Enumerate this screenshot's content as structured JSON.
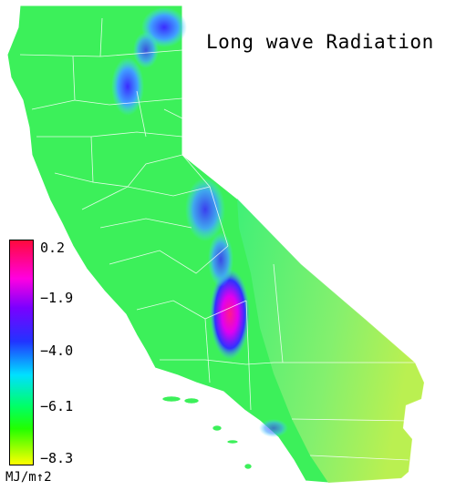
{
  "title": "Long wave Radiation",
  "legend": {
    "ticks": [
      "0.2",
      "−1.9",
      "−4.0",
      "−6.1",
      "−8.3"
    ],
    "unit": "MJ/m↑2"
  },
  "colors": {
    "land": "#3cf05a",
    "high": "#ff0a3c",
    "mid": "#2233ff",
    "low": "#ffff00",
    "county_lines": "#ffffff"
  }
}
